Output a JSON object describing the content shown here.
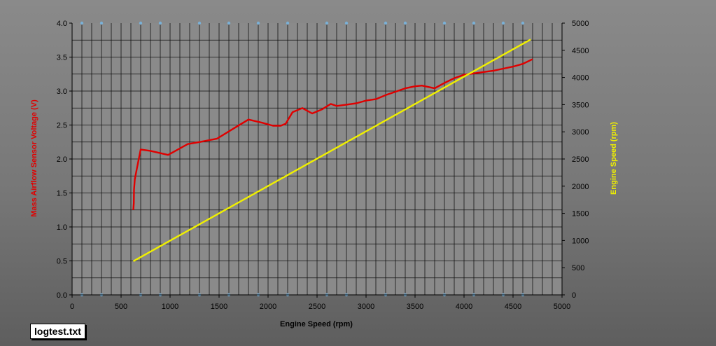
{
  "file_label": "logtest.txt",
  "chart_data": {
    "type": "line",
    "title": "",
    "xlabel": "Engine Speed (rpm)",
    "ylabel_left": "Mass Airflow Sensor Voltage (V)",
    "ylabel_right": "Engine Speed (rpm)",
    "xlim": [
      0,
      5000
    ],
    "ylim_left": [
      0,
      4.0
    ],
    "ylim_right": [
      0,
      5000
    ],
    "x_ticks": [
      "0",
      "500",
      "1000",
      "1500",
      "2000",
      "2500",
      "3000",
      "3500",
      "4000",
      "4500",
      "5000"
    ],
    "y_left_ticks": [
      "0.0",
      "0.5",
      "1.0",
      "1.5",
      "2.0",
      "2.5",
      "3.0",
      "3.5",
      "4.0"
    ],
    "y_right_ticks": [
      "0",
      "500",
      "1000",
      "1500",
      "2000",
      "2500",
      "3000",
      "3500",
      "4000",
      "4500",
      "5000"
    ],
    "grid": true,
    "colors": {
      "voltage": "#e00000",
      "rpm": "#f0f000",
      "grid": "#111111",
      "axis": "#000000"
    },
    "series": [
      {
        "key": "voltage",
        "axis": "left",
        "x": [
          625,
          630,
          632,
          640,
          660,
          700,
          800,
          980,
          1180,
          1300,
          1480,
          1650,
          1800,
          1950,
          2050,
          2130,
          2180,
          2250,
          2350,
          2450,
          2550,
          2640,
          2700,
          2800,
          2900,
          3000,
          3100,
          3200,
          3300,
          3400,
          3500,
          3570,
          3700,
          3800,
          3900,
          4000,
          4100,
          4200,
          4300,
          4400,
          4500,
          4600,
          4700
        ],
        "values": [
          1.25,
          1.35,
          1.55,
          1.7,
          1.85,
          2.14,
          2.12,
          2.06,
          2.22,
          2.25,
          2.3,
          2.45,
          2.58,
          2.53,
          2.49,
          2.49,
          2.52,
          2.69,
          2.75,
          2.67,
          2.73,
          2.81,
          2.78,
          2.8,
          2.82,
          2.86,
          2.88,
          2.94,
          2.99,
          3.04,
          3.07,
          3.08,
          3.04,
          3.12,
          3.19,
          3.24,
          3.26,
          3.28,
          3.3,
          3.33,
          3.36,
          3.4,
          3.47
        ]
      },
      {
        "key": "rpm",
        "axis": "right",
        "x": [
          625,
          4680
        ],
        "values": [
          620,
          4700
        ]
      }
    ]
  }
}
